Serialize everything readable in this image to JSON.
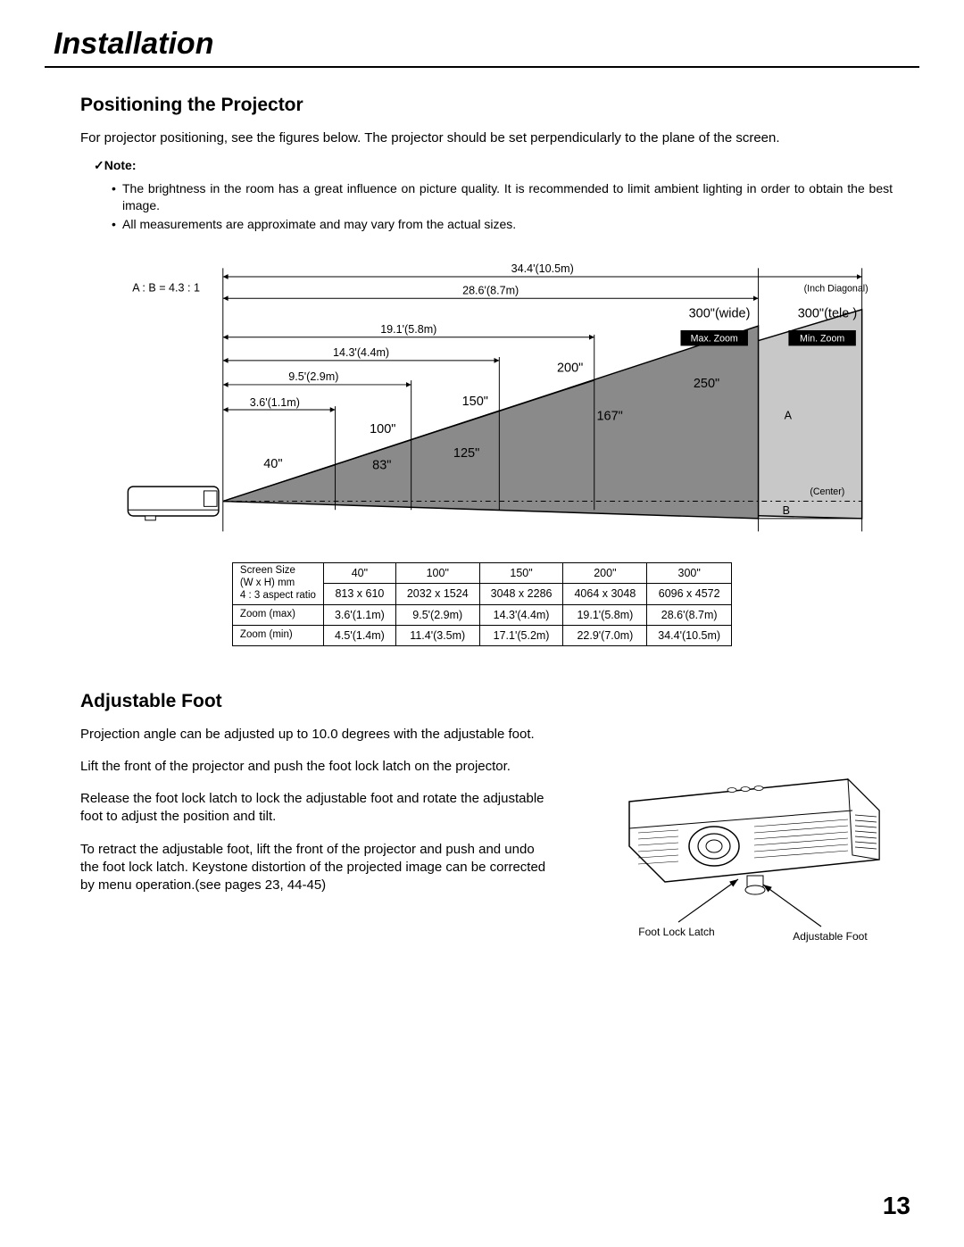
{
  "header": {
    "title": "Installation"
  },
  "section1": {
    "title": "Positioning the Projector",
    "body": "For projector positioning, see the figures below. The projector should be set perpendicularly to the plane of the screen.",
    "note_label": "✓Note:",
    "notes": [
      "The brightness in the room has a great influence on picture quality. It is recommended to limit ambient lighting in order to obtain the best image.",
      "All measurements are approximate and may vary from the actual sizes."
    ]
  },
  "diagram": {
    "ab_ratio": "A : B  =  4.3 : 1",
    "inch_diag": "(Inch Diagonal)",
    "center": "(Center)",
    "label300w": "300\"(wide)",
    "label300t": "300\"(tele )",
    "maxzoom": "Max. Zoom",
    "minzoom": "Min. Zoom",
    "a_label": "A",
    "b_label": "B",
    "dist1": "34.4'(10.5m)",
    "dist2": "28.6'(8.7m)",
    "dist3": "19.1'(5.8m)",
    "dist4": "14.3'(4.4m)",
    "dist5": "9.5'(2.9m)",
    "dist6": "3.6'(1.1m)",
    "s40": "40\"",
    "s83": "83\"",
    "s100": "100\"",
    "s125": "125\"",
    "s150": "150\"",
    "s167": "167\"",
    "s200": "200\"",
    "s250": "250\"",
    "colors": {
      "light": "#c8c8c8",
      "dark": "#8a8a8a",
      "black": "#000000"
    }
  },
  "table": {
    "cols": [
      "40\"",
      "100\"",
      "150\"",
      "200\"",
      "300\""
    ],
    "rows": [
      {
        "head": "Screen Size<br>(W x H) mm<br>4 : 3 aspect ratio",
        "cells": [
          "813 x 610",
          "2032 x 1524",
          "3048 x 2286",
          "4064 x 3048",
          "6096 x 4572"
        ]
      },
      {
        "head": "Zoom (max)",
        "cells": [
          "3.6'(1.1m)",
          "9.5'(2.9m)",
          "14.3'(4.4m)",
          "19.1'(5.8m)",
          "28.6'(8.7m)"
        ]
      },
      {
        "head": "Zoom (min)",
        "cells": [
          "4.5'(1.4m)",
          "11.4'(3.5m)",
          "17.1'(5.2m)",
          "22.9'(7.0m)",
          "34.4'(10.5m)"
        ]
      }
    ]
  },
  "section2": {
    "title": "Adjustable Foot",
    "p1": "Projection angle can be adjusted up to 10.0 degrees with the adjustable foot.",
    "p2": "Lift the front of the projector and push the foot lock latch on the projector.",
    "p3": "Release the foot lock latch to lock the adjustable foot and rotate the adjustable foot to adjust the position and tilt.",
    "p4": "To retract the adjustable foot, lift the front of the projector and push and undo the foot lock latch. Keystone distortion of the projected image can be corrected by menu operation.(see pages 23, 44-45)",
    "foot_lock_label": "Foot Lock Latch",
    "adj_foot_label": "Adjustable Foot"
  },
  "page_number": "13"
}
